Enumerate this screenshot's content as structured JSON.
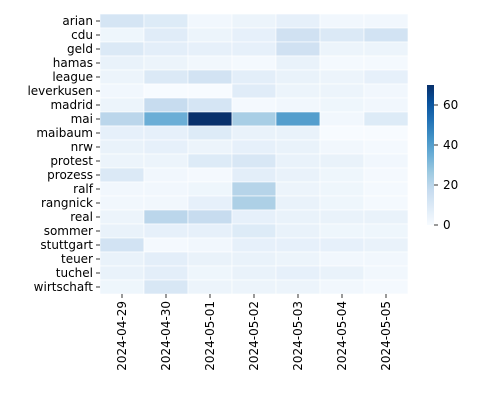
{
  "chart_data": {
    "type": "heatmap",
    "title": "",
    "xlabel": "",
    "ylabel": "",
    "x_labels": [
      "2024-04-29",
      "2024-04-30",
      "2024-05-01",
      "2024-05-02",
      "2024-05-03",
      "2024-05-04",
      "2024-05-05"
    ],
    "y_labels": [
      "arian",
      "cdu",
      "geld",
      "hamas",
      "league",
      "leverkusen",
      "madrid",
      "mai",
      "maibaum",
      "nrw",
      "protest",
      "prozess",
      "ralf",
      "rangnick",
      "real",
      "sommer",
      "stuttgart",
      "teuer",
      "tuchel",
      "wirtschaft"
    ],
    "values": [
      [
        12,
        9,
        2,
        4,
        6,
        2,
        2
      ],
      [
        3,
        8,
        4,
        6,
        14,
        10,
        13
      ],
      [
        10,
        7,
        6,
        6,
        14,
        4,
        4
      ],
      [
        5,
        4,
        2,
        1,
        5,
        1,
        1
      ],
      [
        4,
        10,
        13,
        7,
        5,
        4,
        6
      ],
      [
        2,
        0,
        0,
        8,
        4,
        4,
        2
      ],
      [
        4,
        17,
        12,
        1,
        2,
        3,
        2
      ],
      [
        20,
        35,
        70,
        24,
        40,
        2,
        9
      ],
      [
        6,
        6,
        9,
        5,
        5,
        0,
        0
      ],
      [
        5,
        6,
        4,
        6,
        5,
        2,
        1
      ],
      [
        4,
        4,
        9,
        11,
        5,
        5,
        2
      ],
      [
        10,
        2,
        1,
        7,
        5,
        3,
        1
      ],
      [
        2,
        2,
        3,
        21,
        4,
        3,
        1
      ],
      [
        2,
        2,
        6,
        23,
        5,
        3,
        1
      ],
      [
        4,
        20,
        17,
        6,
        5,
        5,
        5
      ],
      [
        5,
        6,
        6,
        9,
        5,
        3,
        3
      ],
      [
        13,
        1,
        2,
        6,
        6,
        6,
        5
      ],
      [
        5,
        7,
        5,
        5,
        4,
        2,
        2
      ],
      [
        5,
        7,
        3,
        5,
        6,
        5,
        2
      ],
      [
        3,
        11,
        4,
        4,
        4,
        2,
        1
      ]
    ],
    "colormap": "Blues",
    "vmin": 0,
    "vmax": 70,
    "colorbar_ticks": [
      0,
      20,
      40,
      60
    ],
    "grid": false
  }
}
